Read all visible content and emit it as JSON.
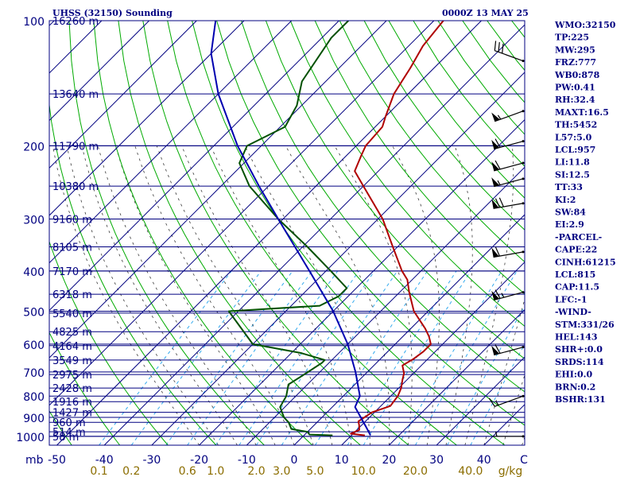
{
  "header": {
    "left": "UHSS (32150) Sounding",
    "right": "0000Z 13 MAY 25"
  },
  "chart_data": {
    "type": "skewt-logp",
    "pressure_axis": {
      "unit_label": "mb",
      "ticks": [
        100,
        200,
        300,
        400,
        500,
        600,
        700,
        800,
        900,
        1000
      ],
      "range": [
        1050,
        100
      ],
      "log_scale": true
    },
    "temperature_axis": {
      "ticks": [
        -50,
        -40,
        -30,
        -20,
        -10,
        0,
        10,
        20,
        30,
        40
      ],
      "unit_label": "C"
    },
    "mixing_ratio_axis": {
      "unit_label": "g/kg",
      "ticks": [
        0.1,
        0.2,
        0.6,
        1.0,
        2.0,
        3.0,
        5.0,
        10.0,
        20.0,
        40.0
      ],
      "tick_labels": [
        "0.1",
        "0.2",
        "0.6",
        "1.0",
        "2.0",
        "3.0",
        "5.0",
        "10.0",
        "20.0",
        "40.0"
      ]
    },
    "height_levels": [
      {
        "p": 1000,
        "label": "58 m"
      },
      {
        "p": 975,
        "label": "514 m"
      },
      {
        "p": 925,
        "label": "960 m"
      },
      {
        "p": 875,
        "label": "1427 m"
      },
      {
        "p": 825,
        "label": "1916 m"
      },
      {
        "p": 765,
        "label": "2428 m"
      },
      {
        "p": 710,
        "label": "2975 m"
      },
      {
        "p": 655,
        "label": "3549 m"
      },
      {
        "p": 605,
        "label": "4164 m"
      },
      {
        "p": 560,
        "label": "4825 m"
      },
      {
        "p": 505,
        "label": "5540 m"
      },
      {
        "p": 455,
        "label": "6318 m"
      },
      {
        "p": 400,
        "label": "7170 m"
      },
      {
        "p": 350,
        "label": "8105 m"
      },
      {
        "p": 300,
        "label": "9160 m"
      },
      {
        "p": 250,
        "label": "10380 m"
      },
      {
        "p": 200,
        "label": "11790 m"
      },
      {
        "p": 150,
        "label": "13640 m"
      },
      {
        "p": 100,
        "label": "16260 m"
      }
    ],
    "series": [
      {
        "name": "temperature",
        "color": "#b00000",
        "points": [
          [
            994,
            12.8
          ],
          [
            985,
            9.5
          ],
          [
            965,
            10.5
          ],
          [
            940,
            9.5
          ],
          [
            920,
            8.5
          ],
          [
            875,
            9.5
          ],
          [
            845,
            12.0
          ],
          [
            800,
            11.5
          ],
          [
            765,
            10.5
          ],
          [
            730,
            9.0
          ],
          [
            705,
            8.0
          ],
          [
            675,
            6.0
          ],
          [
            650,
            7.0
          ],
          [
            625,
            7.5
          ],
          [
            600,
            7.5
          ],
          [
            575,
            5.5
          ],
          [
            550,
            3.0
          ],
          [
            500,
            -3.0
          ],
          [
            450,
            -8.0
          ],
          [
            420,
            -11.0
          ],
          [
            400,
            -14.0
          ],
          [
            350,
            -21.0
          ],
          [
            300,
            -29.0
          ],
          [
            250,
            -40.0
          ],
          [
            230,
            -45.0
          ],
          [
            210,
            -47.0
          ],
          [
            200,
            -48.0
          ],
          [
            180,
            -48.5
          ],
          [
            170,
            -50.0
          ],
          [
            150,
            -53.0
          ],
          [
            130,
            -55.0
          ],
          [
            115,
            -57.0
          ],
          [
            100,
            -58.0
          ]
        ]
      },
      {
        "name": "dewpoint",
        "color": "#005000",
        "points": [
          [
            994,
            6.0
          ],
          [
            990,
            1.0
          ],
          [
            975,
            0.0
          ],
          [
            960,
            -4.0
          ],
          [
            925,
            -6.0
          ],
          [
            900,
            -8.0
          ],
          [
            850,
            -11.0
          ],
          [
            800,
            -12.0
          ],
          [
            750,
            -14.0
          ],
          [
            700,
            -12.5
          ],
          [
            665,
            -11.5
          ],
          [
            655,
            -11.5
          ],
          [
            630,
            -18.0
          ],
          [
            600,
            -30.0
          ],
          [
            500,
            -42.0
          ],
          [
            485,
            -24.0
          ],
          [
            460,
            -22.0
          ],
          [
            440,
            -22.0
          ],
          [
            400,
            -29.0
          ],
          [
            350,
            -39.0
          ],
          [
            300,
            -51.0
          ],
          [
            250,
            -64.0
          ],
          [
            220,
            -71.0
          ],
          [
            200,
            -73.0
          ],
          [
            180,
            -69.0
          ],
          [
            160,
            -71.0
          ],
          [
            140,
            -75.0
          ],
          [
            110,
            -78.0
          ],
          [
            100,
            -78.0
          ]
        ]
      },
      {
        "name": "parcel",
        "color": "#0000b0",
        "points": [
          [
            994,
            14.0
          ],
          [
            957,
            11.8
          ],
          [
            850,
            4.8
          ],
          [
            800,
            3.5
          ],
          [
            700,
            -2.5
          ],
          [
            600,
            -10.0
          ],
          [
            500,
            -20.0
          ],
          [
            400,
            -33.5
          ],
          [
            300,
            -51.0
          ],
          [
            250,
            -62.0
          ],
          [
            200,
            -75.0
          ],
          [
            150,
            -90.0
          ],
          [
            120,
            -100.0
          ],
          [
            100,
            -106.0
          ]
        ]
      }
    ],
    "wind_barbs": [
      {
        "p": 1000,
        "dir": 270,
        "speed_kt": 5
      },
      {
        "p": 800,
        "dir": 250,
        "speed_kt": 15
      },
      {
        "p": 610,
        "dir": 255,
        "speed_kt": 60
      },
      {
        "p": 450,
        "dir": 255,
        "speed_kt": 65
      },
      {
        "p": 360,
        "dir": 260,
        "speed_kt": 60
      },
      {
        "p": 275,
        "dir": 260,
        "speed_kt": 70
      },
      {
        "p": 240,
        "dir": 255,
        "speed_kt": 55
      },
      {
        "p": 220,
        "dir": 255,
        "speed_kt": 60
      },
      {
        "p": 195,
        "dir": 255,
        "speed_kt": 60
      },
      {
        "p": 165,
        "dir": 250,
        "speed_kt": 55
      },
      {
        "p": 125,
        "dir": 290,
        "speed_kt": 30
      }
    ],
    "colors": {
      "isobar": "#000080",
      "isotherm": "#000080",
      "dry_adiabat": "#00aa00",
      "moist_adiabat": "#3a3a3a",
      "mixing_ratio": "#33aaee"
    },
    "grid": true
  },
  "indices": [
    "WMO:32150",
    "TP:225",
    "MW:295",
    "FRZ:777",
    "WB0:878",
    "PW:0.41",
    "RH:32.4",
    "MAXT:16.5",
    "TH:5452",
    "L57:5.0",
    "LCL:957",
    "LI:11.8",
    "SI:12.5",
    "TT:33",
    "KI:2",
    "SW:84",
    "EI:2.9",
    "-PARCEL-",
    "CAPE:22",
    "CINH:61215",
    "LCL:815",
    "CAP:11.5",
    "LFC:-1",
    "-WIND-",
    "STM:331/26",
    "HEL:143",
    "SHR+:0.0",
    "SRDS:114",
    "EHI:0.0",
    "BRN:0.2",
    "BSHR:131"
  ]
}
